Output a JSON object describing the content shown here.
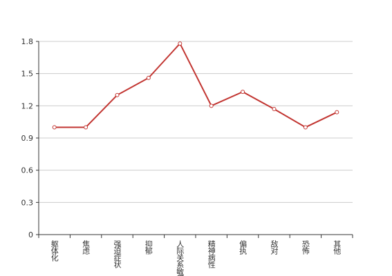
{
  "chart_data": {
    "type": "line",
    "categories": [
      "躯体化",
      "焦虑",
      "强迫症状",
      "抑郁",
      "人际关系敏感",
      "精神病性",
      "偏执",
      "敌对",
      "恐怖",
      "其他"
    ],
    "values": [
      1.0,
      1.0,
      1.3,
      1.46,
      1.78,
      1.2,
      1.33,
      1.17,
      1.0,
      1.14
    ],
    "color": "#c23531",
    "ylim": [
      0,
      1.8
    ],
    "yticks": [
      0,
      0.3,
      0.6,
      0.9,
      1.2,
      1.5,
      1.8
    ],
    "grid": true
  }
}
